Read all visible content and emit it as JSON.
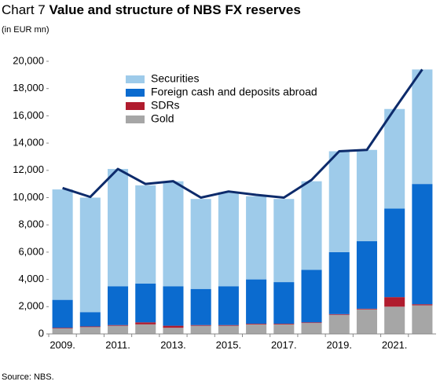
{
  "chart_data": {
    "type": "bar",
    "stacked": true,
    "label": "Chart 7",
    "title": "Value and structure of NBS FX reserves",
    "subtitle": "(in EUR mn)",
    "source": "Source: NBS.",
    "categories": [
      "2009.",
      null,
      "2011.",
      null,
      "2013.",
      null,
      "2015.",
      null,
      "2017.",
      null,
      "2019.",
      null,
      "2021.",
      null
    ],
    "series": [
      {
        "name": "Gold",
        "color": "#a6a6a6",
        "values": [
          400,
          500,
          600,
          700,
          450,
          600,
          600,
          700,
          700,
          800,
          1400,
          1800,
          2000,
          2100
        ]
      },
      {
        "name": "SDRs",
        "color": "#b01c2e",
        "values": [
          50,
          50,
          50,
          150,
          150,
          50,
          50,
          50,
          50,
          50,
          50,
          50,
          700,
          80
        ]
      },
      {
        "name": "Foreign cash and deposits abroad",
        "color": "#0b6bcf",
        "values": [
          2050,
          1050,
          2850,
          2850,
          2900,
          2650,
          2850,
          3250,
          3050,
          3850,
          4550,
          4950,
          6500,
          8820
        ]
      },
      {
        "name": "Securities",
        "color": "#9ecbea",
        "values": [
          8100,
          8400,
          8600,
          7200,
          7700,
          6600,
          6900,
          6100,
          6100,
          6500,
          7400,
          6700,
          7300,
          8400
        ]
      },
      {
        "type": "line",
        "color": "#0d2b6b",
        "values": [
          10700,
          10050,
          12100,
          11000,
          11200,
          10000,
          10450,
          10200,
          10000,
          11300,
          13400,
          13500,
          16500,
          19400
        ]
      }
    ],
    "ylim": [
      0,
      20000
    ],
    "yticks": [
      0,
      {
        "value": 2000,
        "label": "2,000"
      },
      {
        "value": 4000,
        "label": "4,000"
      },
      {
        "value": 6000,
        "label": "6,000"
      },
      {
        "value": 8000,
        "label": "8,000"
      },
      {
        "value": 10000,
        "label": "10,000"
      },
      {
        "value": 12000,
        "label": "12,000"
      },
      {
        "value": 14000,
        "label": "14,000"
      },
      {
        "value": 16000,
        "label": "16,000"
      },
      {
        "value": 18000,
        "label": "18,000"
      },
      {
        "value": 20000,
        "label": "20,000"
      }
    ],
    "grid": false
  }
}
